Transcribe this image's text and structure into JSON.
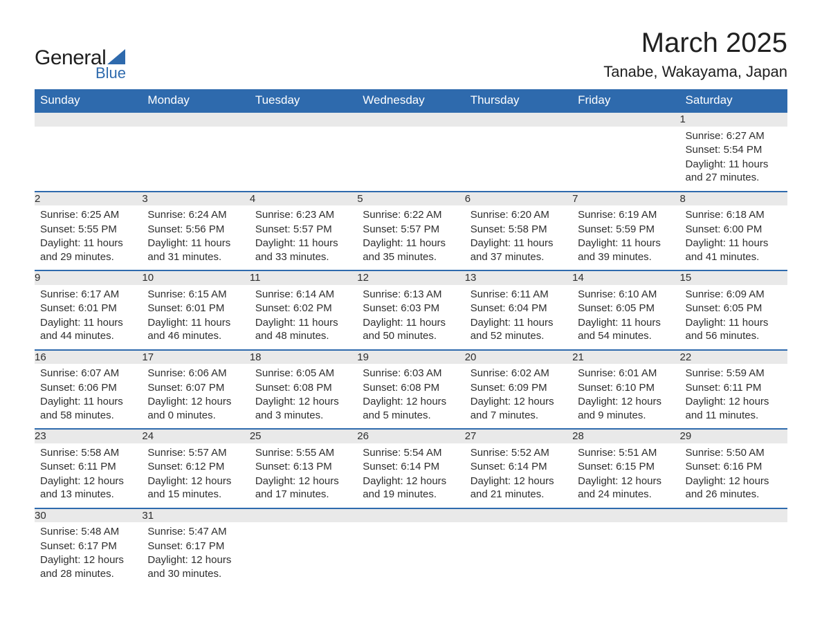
{
  "logo": {
    "word1": "General",
    "word2": "Blue"
  },
  "title": "March 2025",
  "location": "Tanabe, Wakayama, Japan",
  "colors": {
    "header_bg": "#2e6aad",
    "header_text": "#ffffff",
    "row_divider": "#2e6aad",
    "daynum_bg": "#e9e9e9",
    "text": "#333333"
  },
  "weekdays": [
    "Sunday",
    "Monday",
    "Tuesday",
    "Wednesday",
    "Thursday",
    "Friday",
    "Saturday"
  ],
  "weeks": [
    [
      null,
      null,
      null,
      null,
      null,
      null,
      {
        "n": 1,
        "sunrise": "6:27 AM",
        "sunset": "5:54 PM",
        "daylight": "11 hours and 27 minutes."
      }
    ],
    [
      {
        "n": 2,
        "sunrise": "6:25 AM",
        "sunset": "5:55 PM",
        "daylight": "11 hours and 29 minutes."
      },
      {
        "n": 3,
        "sunrise": "6:24 AM",
        "sunset": "5:56 PM",
        "daylight": "11 hours and 31 minutes."
      },
      {
        "n": 4,
        "sunrise": "6:23 AM",
        "sunset": "5:57 PM",
        "daylight": "11 hours and 33 minutes."
      },
      {
        "n": 5,
        "sunrise": "6:22 AM",
        "sunset": "5:57 PM",
        "daylight": "11 hours and 35 minutes."
      },
      {
        "n": 6,
        "sunrise": "6:20 AM",
        "sunset": "5:58 PM",
        "daylight": "11 hours and 37 minutes."
      },
      {
        "n": 7,
        "sunrise": "6:19 AM",
        "sunset": "5:59 PM",
        "daylight": "11 hours and 39 minutes."
      },
      {
        "n": 8,
        "sunrise": "6:18 AM",
        "sunset": "6:00 PM",
        "daylight": "11 hours and 41 minutes."
      }
    ],
    [
      {
        "n": 9,
        "sunrise": "6:17 AM",
        "sunset": "6:01 PM",
        "daylight": "11 hours and 44 minutes."
      },
      {
        "n": 10,
        "sunrise": "6:15 AM",
        "sunset": "6:01 PM",
        "daylight": "11 hours and 46 minutes."
      },
      {
        "n": 11,
        "sunrise": "6:14 AM",
        "sunset": "6:02 PM",
        "daylight": "11 hours and 48 minutes."
      },
      {
        "n": 12,
        "sunrise": "6:13 AM",
        "sunset": "6:03 PM",
        "daylight": "11 hours and 50 minutes."
      },
      {
        "n": 13,
        "sunrise": "6:11 AM",
        "sunset": "6:04 PM",
        "daylight": "11 hours and 52 minutes."
      },
      {
        "n": 14,
        "sunrise": "6:10 AM",
        "sunset": "6:05 PM",
        "daylight": "11 hours and 54 minutes."
      },
      {
        "n": 15,
        "sunrise": "6:09 AM",
        "sunset": "6:05 PM",
        "daylight": "11 hours and 56 minutes."
      }
    ],
    [
      {
        "n": 16,
        "sunrise": "6:07 AM",
        "sunset": "6:06 PM",
        "daylight": "11 hours and 58 minutes."
      },
      {
        "n": 17,
        "sunrise": "6:06 AM",
        "sunset": "6:07 PM",
        "daylight": "12 hours and 0 minutes."
      },
      {
        "n": 18,
        "sunrise": "6:05 AM",
        "sunset": "6:08 PM",
        "daylight": "12 hours and 3 minutes."
      },
      {
        "n": 19,
        "sunrise": "6:03 AM",
        "sunset": "6:08 PM",
        "daylight": "12 hours and 5 minutes."
      },
      {
        "n": 20,
        "sunrise": "6:02 AM",
        "sunset": "6:09 PM",
        "daylight": "12 hours and 7 minutes."
      },
      {
        "n": 21,
        "sunrise": "6:01 AM",
        "sunset": "6:10 PM",
        "daylight": "12 hours and 9 minutes."
      },
      {
        "n": 22,
        "sunrise": "5:59 AM",
        "sunset": "6:11 PM",
        "daylight": "12 hours and 11 minutes."
      }
    ],
    [
      {
        "n": 23,
        "sunrise": "5:58 AM",
        "sunset": "6:11 PM",
        "daylight": "12 hours and 13 minutes."
      },
      {
        "n": 24,
        "sunrise": "5:57 AM",
        "sunset": "6:12 PM",
        "daylight": "12 hours and 15 minutes."
      },
      {
        "n": 25,
        "sunrise": "5:55 AM",
        "sunset": "6:13 PM",
        "daylight": "12 hours and 17 minutes."
      },
      {
        "n": 26,
        "sunrise": "5:54 AM",
        "sunset": "6:14 PM",
        "daylight": "12 hours and 19 minutes."
      },
      {
        "n": 27,
        "sunrise": "5:52 AM",
        "sunset": "6:14 PM",
        "daylight": "12 hours and 21 minutes."
      },
      {
        "n": 28,
        "sunrise": "5:51 AM",
        "sunset": "6:15 PM",
        "daylight": "12 hours and 24 minutes."
      },
      {
        "n": 29,
        "sunrise": "5:50 AM",
        "sunset": "6:16 PM",
        "daylight": "12 hours and 26 minutes."
      }
    ],
    [
      {
        "n": 30,
        "sunrise": "5:48 AM",
        "sunset": "6:17 PM",
        "daylight": "12 hours and 28 minutes."
      },
      {
        "n": 31,
        "sunrise": "5:47 AM",
        "sunset": "6:17 PM",
        "daylight": "12 hours and 30 minutes."
      },
      null,
      null,
      null,
      null,
      null
    ]
  ],
  "labels": {
    "sunrise": "Sunrise: ",
    "sunset": "Sunset: ",
    "daylight": "Daylight: "
  }
}
